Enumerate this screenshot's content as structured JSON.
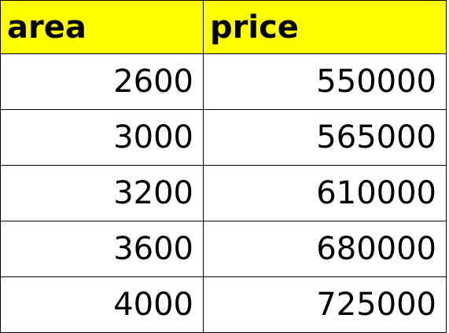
{
  "table": {
    "headers": [
      "area",
      "price"
    ],
    "header_bg": "#ffff00",
    "rows": [
      {
        "area": "2600",
        "price": "550000"
      },
      {
        "area": "3000",
        "price": "565000"
      },
      {
        "area": "3200",
        "price": "610000"
      },
      {
        "area": "3600",
        "price": "680000"
      },
      {
        "area": "4000",
        "price": "725000"
      }
    ]
  }
}
